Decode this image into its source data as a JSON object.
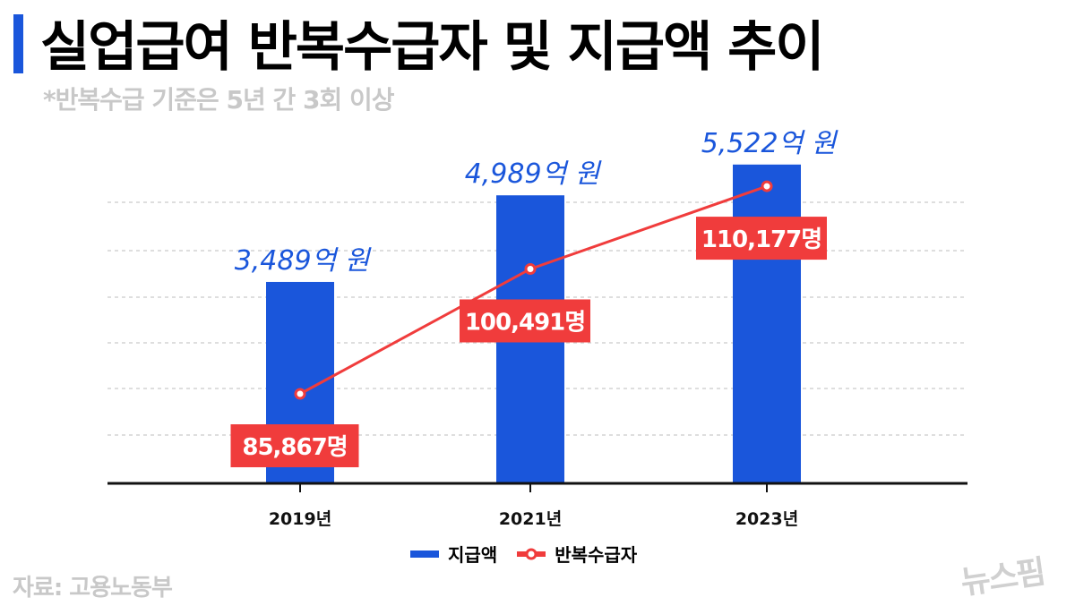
{
  "header": {
    "title": "실업급여 반복수급자 및 지급액 추이",
    "subtitle": "*반복수급 기준은 5년 간 3회 이상"
  },
  "footer": {
    "source": "자료: 고용노동부",
    "logo": "뉴스핌"
  },
  "colors": {
    "bar": "#1a56db",
    "line": "#f03c3c",
    "accent": "#1a56db"
  },
  "chart_data": {
    "type": "bar+line",
    "categories": [
      "2019년",
      "2021년",
      "2023년"
    ],
    "series": [
      {
        "name": "지급액",
        "type": "bar",
        "values": [
          3489,
          4989,
          5522
        ],
        "labels": [
          "3,489억 원",
          "4,989억 원",
          "5,522억 원"
        ],
        "color": "#1a56db"
      },
      {
        "name": "반복수급자",
        "type": "line",
        "values": [
          85867,
          100491,
          110177
        ],
        "labels": [
          "85,867명",
          "100,491명",
          "110,177명"
        ],
        "color": "#f03c3c"
      }
    ],
    "legend": "bottom-center",
    "grid": true
  }
}
